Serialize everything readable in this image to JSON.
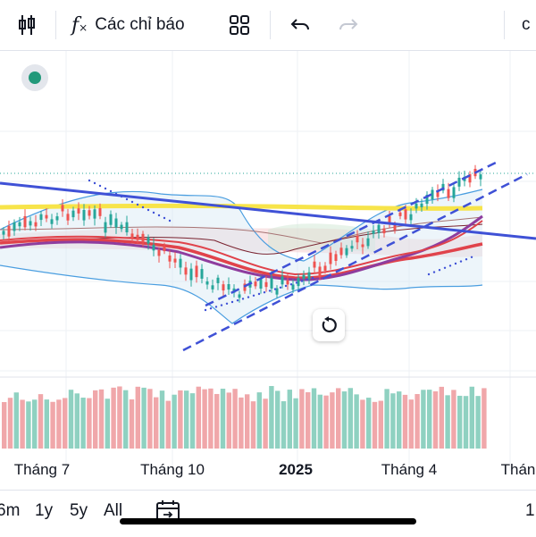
{
  "toolbar": {
    "indicators_label": "Các chỉ báo",
    "right_cut_text": "c",
    "icons": [
      "candle-style-icon",
      "function-fx-icon",
      "layout-grid-icon",
      "undo-icon",
      "redo-icon"
    ]
  },
  "chart": {
    "x_labels": [
      "Tháng 7",
      "Tháng 10",
      "2025",
      "Tháng 4",
      "Thán"
    ]
  },
  "range_bar": {
    "items": [
      "6m",
      "1y",
      "5y",
      "All"
    ],
    "right_cut": "1"
  },
  "colors": {
    "up": "#26a69a",
    "down": "#ef5350",
    "trend_line": "#3f51d6",
    "yellow_ma": "#f7e44a",
    "red_ma": "#e0434b",
    "purple_ma": "#8e3d9e",
    "status": "#22997a"
  }
}
